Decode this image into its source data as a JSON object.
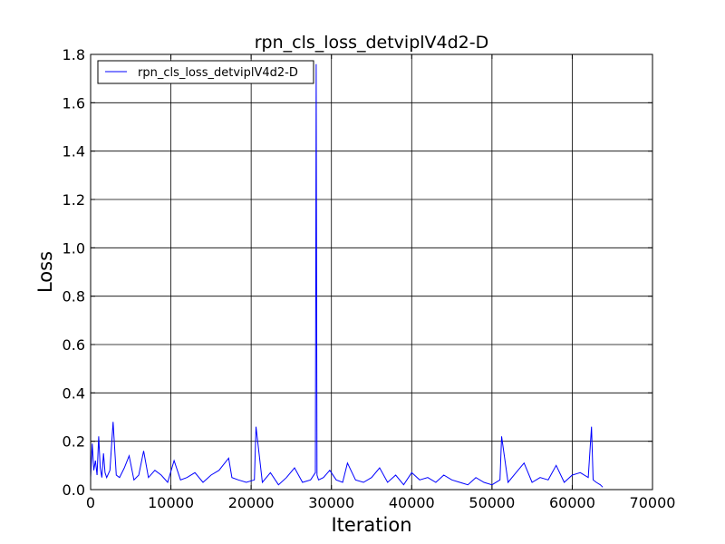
{
  "chart_data": {
    "type": "line",
    "title": "rpn_cls_loss_detviplV4d2-D",
    "xlabel": "Iteration",
    "ylabel": "Loss",
    "xlim": [
      0,
      70000
    ],
    "ylim": [
      0.0,
      1.8
    ],
    "xticks": [
      0,
      10000,
      20000,
      30000,
      40000,
      50000,
      60000,
      70000
    ],
    "xtick_labels": [
      "0",
      "10000",
      "20000",
      "30000",
      "40000",
      "50000",
      "60000",
      "70000"
    ],
    "yticks": [
      0.0,
      0.2,
      0.4,
      0.6,
      0.8,
      1.0,
      1.2,
      1.4,
      1.6,
      1.8
    ],
    "ytick_labels": [
      "0.0",
      "0.2",
      "0.4",
      "0.6",
      "0.8",
      "1.0",
      "1.2",
      "1.4",
      "1.6",
      "1.8"
    ],
    "grid": true,
    "legend": {
      "position": "top-left",
      "entries": [
        "rpn_cls_loss_detviplV4d2-D"
      ]
    },
    "series": [
      {
        "name": "rpn_cls_loss_detviplV4d2-D",
        "color": "#0000ff",
        "x": [
          0,
          200,
          400,
          600,
          800,
          1000,
          1200,
          1400,
          1600,
          1800,
          2000,
          2400,
          2800,
          3200,
          3600,
          4200,
          4800,
          5400,
          6000,
          6600,
          7200,
          8000,
          8800,
          9600,
          10400,
          11200,
          12000,
          13000,
          14000,
          15000,
          16000,
          17200,
          17600,
          18400,
          19400,
          20400,
          20600,
          21400,
          22400,
          23400,
          24400,
          25400,
          26400,
          27400,
          28000,
          28100,
          28200,
          28400,
          29000,
          29800,
          30600,
          31400,
          32000,
          33000,
          34000,
          35000,
          36000,
          37000,
          38000,
          39000,
          40000,
          41000,
          42000,
          43000,
          44000,
          45000,
          46000,
          47000,
          48000,
          49000,
          50000,
          51000,
          51200,
          52000,
          53000,
          54000,
          55000,
          56000,
          57000,
          58000,
          59000,
          60000,
          61000,
          62000,
          62400,
          62600,
          63000,
          63500,
          63800
        ],
        "y": [
          0.05,
          0.19,
          0.08,
          0.12,
          0.06,
          0.22,
          0.09,
          0.05,
          0.15,
          0.07,
          0.05,
          0.08,
          0.28,
          0.06,
          0.05,
          0.09,
          0.14,
          0.04,
          0.06,
          0.16,
          0.05,
          0.08,
          0.06,
          0.03,
          0.12,
          0.04,
          0.05,
          0.07,
          0.03,
          0.06,
          0.08,
          0.13,
          0.05,
          0.04,
          0.03,
          0.04,
          0.26,
          0.03,
          0.07,
          0.02,
          0.05,
          0.09,
          0.03,
          0.04,
          0.07,
          1.76,
          0.06,
          0.04,
          0.05,
          0.08,
          0.04,
          0.03,
          0.11,
          0.04,
          0.03,
          0.05,
          0.09,
          0.03,
          0.06,
          0.02,
          0.07,
          0.04,
          0.05,
          0.03,
          0.06,
          0.04,
          0.03,
          0.02,
          0.05,
          0.03,
          0.02,
          0.04,
          0.22,
          0.03,
          0.07,
          0.11,
          0.03,
          0.05,
          0.04,
          0.1,
          0.03,
          0.06,
          0.07,
          0.05,
          0.26,
          0.04,
          0.03,
          0.02,
          0.01
        ]
      }
    ]
  }
}
